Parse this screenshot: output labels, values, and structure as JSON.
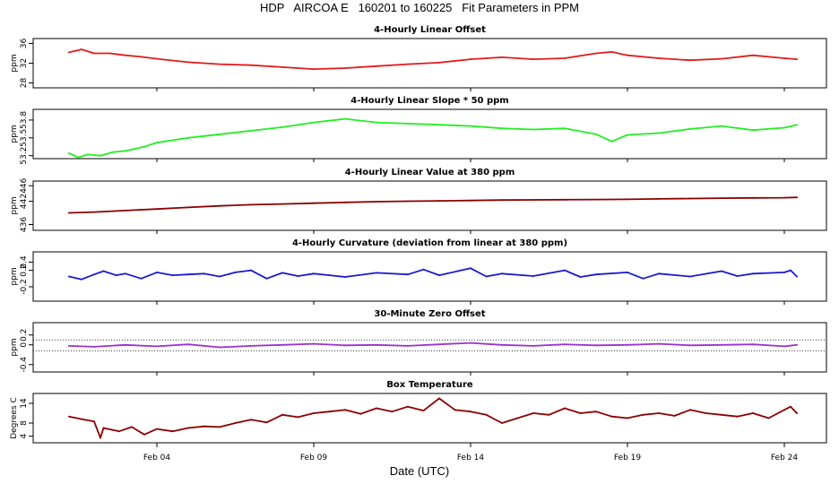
{
  "title": "HDP   AIRCOA E   160201 to 160225   Fit Parameters in PPM",
  "x_axis_label": "Date (UTC)",
  "x_ticks": [
    {
      "label": "Feb 04",
      "day": 4
    },
    {
      "label": "Feb 09",
      "day": 9
    },
    {
      "label": "Feb 14",
      "day": 14
    },
    {
      "label": "Feb 19",
      "day": 19
    },
    {
      "label": "Feb 24",
      "day": 24
    }
  ],
  "chart_data": [
    {
      "type": "line",
      "title": "4-Hourly Linear Offset",
      "ylabel": "ppm",
      "yticks": [
        "28",
        "32",
        "36"
      ],
      "ylim": [
        27,
        37
      ],
      "color": "#e31a1c",
      "grid": false,
      "series": [
        {
          "day": [
            1.2,
            1.6,
            2.0,
            2.5,
            3.0,
            3.5,
            4.0,
            5.0,
            6.0,
            7.0,
            8.0,
            9.0,
            10.0,
            11.0,
            12.0,
            13.0,
            14.0,
            15.0,
            16.0,
            17.0,
            18.0,
            18.5,
            19.0,
            20.0,
            21.0,
            22.0,
            23.0,
            24.0,
            24.4
          ],
          "value": [
            34.2,
            34.8,
            34.0,
            34.0,
            33.6,
            33.3,
            32.9,
            32.2,
            31.8,
            31.6,
            31.2,
            30.8,
            31.0,
            31.4,
            31.8,
            32.1,
            32.8,
            33.2,
            32.8,
            33.0,
            34.0,
            34.3,
            33.6,
            33.0,
            32.6,
            32.9,
            33.6,
            33.0,
            32.8
          ]
        }
      ]
    },
    {
      "type": "line",
      "title": "4-Hourly Linear Slope * 50 ppm",
      "ylabel": "ppm",
      "yticks": [
        "53.2",
        "53.5",
        "53.8"
      ],
      "ylim": [
        53.15,
        53.98
      ],
      "color": "#22ee22",
      "grid": false,
      "series": [
        {
          "day": [
            1.2,
            1.5,
            1.8,
            2.2,
            2.6,
            3.0,
            3.6,
            4.0,
            5.0,
            6.0,
            7.0,
            8.0,
            9.0,
            10.0,
            11.0,
            12.0,
            13.0,
            14.0,
            15.0,
            16.0,
            17.0,
            18.0,
            18.5,
            19.0,
            20.0,
            21.0,
            22.0,
            23.0,
            24.0,
            24.4
          ],
          "value": [
            53.24,
            53.17,
            53.22,
            53.2,
            53.26,
            53.28,
            53.35,
            53.42,
            53.5,
            53.56,
            53.62,
            53.68,
            53.76,
            53.82,
            53.76,
            53.74,
            53.72,
            53.7,
            53.66,
            53.64,
            53.66,
            53.56,
            53.44,
            53.55,
            53.58,
            53.65,
            53.7,
            53.63,
            53.67,
            53.72
          ]
        }
      ]
    },
    {
      "type": "line",
      "title": "4-Hourly Linear Value at 380 ppm",
      "ylabel": "ppm",
      "yticks": [
        "436",
        "442",
        "446"
      ],
      "ylim": [
        434.5,
        447.2
      ],
      "color": "#8b0000",
      "grid": false,
      "series": [
        {
          "day": [
            1.2,
            2.0,
            3.0,
            4.0,
            5.0,
            6.0,
            7.0,
            8.0,
            9.0,
            10.0,
            11.0,
            12.0,
            13.0,
            14.0,
            15.0,
            16.0,
            17.0,
            18.0,
            19.0,
            20.0,
            21.0,
            22.0,
            23.0,
            24.0,
            24.4
          ],
          "value": [
            439.0,
            439.2,
            439.6,
            440.0,
            440.4,
            440.8,
            441.1,
            441.3,
            441.5,
            441.7,
            441.9,
            442.0,
            442.1,
            442.2,
            442.3,
            442.35,
            442.4,
            442.45,
            442.5,
            442.6,
            442.7,
            442.8,
            442.85,
            442.9,
            443.0
          ]
        }
      ]
    },
    {
      "type": "line",
      "title": "4-Hourly Curvature (deviation from linear at 380 ppm)",
      "ylabel": "ppm",
      "yticks": [
        "-0.2",
        "0.2",
        "0.4"
      ],
      "ylim": [
        -0.55,
        0.65
      ],
      "color": "#1a1acc",
      "grid": false,
      "series": [
        {
          "day": [
            1.2,
            1.6,
            2.0,
            2.3,
            2.7,
            3.0,
            3.5,
            4.0,
            4.5,
            5.0,
            5.5,
            6.0,
            6.5,
            7.0,
            7.5,
            8.0,
            8.5,
            9.0,
            9.5,
            10.0,
            11.0,
            12.0,
            12.5,
            13.0,
            14.0,
            14.5,
            15.0,
            16.0,
            17.0,
            17.5,
            18.0,
            19.0,
            19.5,
            20.0,
            21.0,
            22.0,
            22.5,
            23.0,
            24.0,
            24.2,
            24.4
          ],
          "value": [
            0.05,
            -0.02,
            0.1,
            0.18,
            0.08,
            0.12,
            0.0,
            0.15,
            0.08,
            0.1,
            0.12,
            0.05,
            0.15,
            0.2,
            0.0,
            0.14,
            0.06,
            0.12,
            0.08,
            0.04,
            0.14,
            0.1,
            0.22,
            0.08,
            0.25,
            0.05,
            0.12,
            0.06,
            0.2,
            0.04,
            0.1,
            0.15,
            0.0,
            0.12,
            0.05,
            0.18,
            0.06,
            0.12,
            0.15,
            0.2,
            0.05
          ]
        }
      ]
    },
    {
      "type": "line",
      "title": "30-Minute Zero Offset",
      "ylabel": "ppm",
      "yticks": [
        "-0.4",
        "0",
        "0.2"
      ],
      "ylim": [
        -0.55,
        0.45
      ],
      "color": "#9a32cd",
      "grid": false,
      "reference_lines": [
        0.1,
        -0.12
      ],
      "series": [
        {
          "day": [
            1.2,
            2.0,
            3.0,
            4.0,
            5.0,
            6.0,
            7.0,
            8.0,
            9.0,
            10.0,
            11.0,
            12.0,
            13.0,
            14.0,
            15.0,
            16.0,
            17.0,
            18.0,
            19.0,
            20.0,
            21.0,
            22.0,
            23.0,
            24.0,
            24.4
          ],
          "value": [
            -0.02,
            -0.04,
            0.0,
            -0.03,
            0.01,
            -0.05,
            -0.02,
            0.0,
            0.02,
            -0.01,
            0.0,
            -0.02,
            0.01,
            0.04,
            0.0,
            -0.02,
            0.01,
            -0.01,
            0.0,
            0.02,
            -0.01,
            0.0,
            0.01,
            -0.03,
            0.0
          ]
        }
      ]
    },
    {
      "type": "line",
      "title": "Box Temperature",
      "ylabel": "Degrees C",
      "yticks": [
        "4",
        "8",
        "14"
      ],
      "ylim": [
        2,
        17
      ],
      "color": "#8b0000",
      "grid": false,
      "series": [
        {
          "day": [
            1.2,
            1.6,
            2.0,
            2.2,
            2.3,
            2.8,
            3.2,
            3.6,
            4.0,
            4.5,
            5.0,
            5.5,
            6.0,
            6.5,
            7.0,
            7.5,
            8.0,
            8.5,
            9.0,
            9.5,
            10.0,
            10.5,
            11.0,
            11.5,
            12.0,
            12.5,
            13.0,
            13.5,
            14.0,
            14.5,
            15.0,
            15.5,
            16.0,
            16.5,
            17.0,
            17.5,
            18.0,
            18.5,
            19.0,
            19.5,
            20.0,
            20.5,
            21.0,
            21.5,
            22.0,
            22.5,
            23.0,
            23.5,
            24.0,
            24.2,
            24.4
          ],
          "value": [
            10.0,
            9.2,
            8.5,
            3.5,
            6.5,
            5.5,
            6.8,
            4.5,
            6.2,
            5.5,
            6.5,
            7.0,
            6.8,
            8.0,
            9.0,
            8.2,
            10.5,
            9.8,
            11.0,
            11.5,
            12.0,
            10.8,
            12.5,
            11.5,
            13.0,
            11.8,
            15.5,
            12.0,
            11.5,
            10.5,
            8.0,
            9.5,
            11.0,
            10.5,
            12.5,
            11.0,
            11.5,
            10.0,
            9.5,
            10.5,
            11.0,
            10.2,
            12.0,
            11.0,
            10.5,
            10.0,
            11.0,
            9.5,
            12.0,
            13.0,
            11.0
          ]
        }
      ]
    }
  ]
}
